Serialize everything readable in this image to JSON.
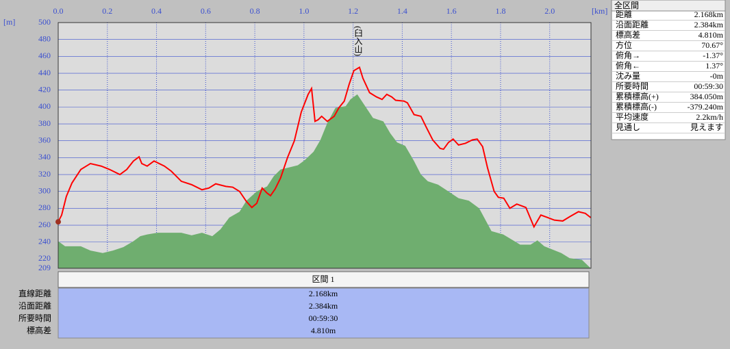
{
  "chart_data": {
    "type": "line",
    "x_unit": "[km]",
    "y_unit": "[m]",
    "xlim": [
      0,
      2.168
    ],
    "ylim": [
      209,
      500
    ],
    "xticks": [
      {
        "value": 0,
        "label": "0.0"
      },
      0.2,
      0.4,
      0.6,
      0.8,
      {
        "value": 1,
        "label": "1.0"
      },
      1.2,
      1.4,
      1.6,
      1.8,
      {
        "value": 2,
        "label": "2.0"
      }
    ],
    "yticks": [
      209,
      220,
      240,
      260,
      280,
      300,
      320,
      340,
      360,
      380,
      400,
      420,
      440,
      460,
      480,
      500
    ],
    "grid": true,
    "annotation": {
      "text": "(臼入山)",
      "x": 1.226
    },
    "series": [
      {
        "type": "area",
        "color": "#6fae6f",
        "x": [
          0,
          0.028,
          0.092,
          0.131,
          0.181,
          0.223,
          0.265,
          0.306,
          0.334,
          0.362,
          0.404,
          0.501,
          0.543,
          0.585,
          0.627,
          0.66,
          0.696,
          0.738,
          0.766,
          0.808,
          0.85,
          0.877,
          0.905,
          0.933,
          0.975,
          1.003,
          1.039,
          1.067,
          1.095,
          1.128,
          1.17,
          1.189,
          1.217,
          1.24,
          1.281,
          1.323,
          1.351,
          1.379,
          1.412,
          1.448,
          1.476,
          1.504,
          1.546,
          1.588,
          1.629,
          1.671,
          1.713,
          1.763,
          1.811,
          1.88,
          1.922,
          1.95,
          1.978,
          2.047,
          2.081,
          2.131,
          2.167
        ],
        "values": [
          241,
          235,
          235,
          230,
          227,
          230,
          234,
          241,
          247,
          249,
          251,
          251,
          248,
          251,
          247,
          255,
          269,
          276,
          289,
          300,
          306,
          318,
          326,
          328,
          331,
          337,
          347,
          361,
          381,
          399,
          401,
          409,
          415,
          405,
          387,
          383,
          369,
          358,
          354,
          336,
          320,
          312,
          308,
          300,
          292,
          289,
          280,
          253,
          249,
          237,
          237,
          242,
          235,
          227,
          221,
          219,
          209
        ]
      },
      {
        "type": "line",
        "color": "#ff0000",
        "x": [
          0,
          0.014,
          0.033,
          0.056,
          0.092,
          0.131,
          0.175,
          0.209,
          0.251,
          0.279,
          0.306,
          0.329,
          0.34,
          0.362,
          0.39,
          0.432,
          0.46,
          0.501,
          0.543,
          0.585,
          0.613,
          0.641,
          0.682,
          0.71,
          0.738,
          0.766,
          0.788,
          0.808,
          0.83,
          0.85,
          0.864,
          0.883,
          0.905,
          0.933,
          0.961,
          0.989,
          1.017,
          1.031,
          1.045,
          1.058,
          1.072,
          1.095,
          1.123,
          1.142,
          1.164,
          1.184,
          1.203,
          1.226,
          1.24,
          1.267,
          1.295,
          1.318,
          1.337,
          1.357,
          1.373,
          1.407,
          1.421,
          1.448,
          1.476,
          1.496,
          1.524,
          1.554,
          1.568,
          1.588,
          1.607,
          1.629,
          1.657,
          1.685,
          1.705,
          1.727,
          1.747,
          1.774,
          1.791,
          1.813,
          1.838,
          1.866,
          1.903,
          1.936,
          1.964,
          1.992,
          2.019,
          2.053,
          2.081,
          2.117,
          2.145,
          2.167
        ],
        "values": [
          264,
          272,
          294,
          310,
          326,
          333,
          330,
          326,
          320,
          326,
          336,
          341,
          333,
          330,
          336,
          330,
          324,
          312,
          308,
          302,
          304,
          309,
          306,
          305,
          300,
          288,
          281,
          286,
          304,
          298,
          295,
          303,
          316,
          340,
          360,
          394,
          415,
          422,
          383,
          385,
          389,
          383,
          389,
          399,
          407,
          427,
          443,
          447,
          434,
          417,
          412,
          409,
          415,
          412,
          408,
          407,
          405,
          391,
          389,
          377,
          361,
          351,
          350,
          358,
          362,
          355,
          357,
          361,
          362,
          353,
          328,
          300,
          293,
          292,
          280,
          285,
          281,
          258,
          272,
          269,
          266,
          265,
          270,
          276,
          274,
          269
        ]
      }
    ]
  },
  "summary": {
    "title": "全区間",
    "rows": [
      [
        "距離",
        "2.168km"
      ],
      [
        "沿面距離",
        "2.384km"
      ],
      [
        "標高差",
        "4.810m"
      ],
      [
        "方位",
        "70.67°"
      ],
      [
        "俯角→",
        "-1.37°"
      ],
      [
        "俯角←",
        "1.37°"
      ],
      [
        "沈み量",
        "-0m"
      ],
      [
        "所要時間",
        "00:59:30"
      ],
      [
        "累積標高(+)",
        "384.050m"
      ],
      [
        "累積標高(-)",
        "-379.240m"
      ],
      [
        "平均速度",
        "2.2km/h"
      ],
      [
        "見通し",
        "見えます"
      ]
    ]
  },
  "section": {
    "title": "区間 1",
    "rows": [
      [
        "直線距離",
        "2.168km"
      ],
      [
        "沿面距離",
        "2.384km"
      ],
      [
        "所要時間",
        "00:59:30"
      ],
      [
        "標高差",
        "4.810m"
      ]
    ]
  }
}
